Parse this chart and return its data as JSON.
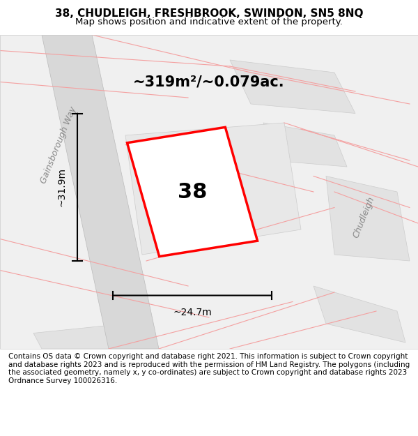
{
  "title": "38, CHUDLEIGH, FRESHBROOK, SWINDON, SN5 8NQ",
  "subtitle": "Map shows position and indicative extent of the property.",
  "area_label": "~319m²/~0.079ac.",
  "house_number": "38",
  "dim_width": "~24.7m",
  "dim_height": "~31.9m",
  "street_label_gainsborough": "Gainsborough Way",
  "street_label_chudleigh": "Chudleigh",
  "copyright_text": "Contains OS data © Crown copyright and database right 2021. This information is subject to Crown copyright and database rights 2023 and is reproduced with the permission of HM Land Registry. The polygons (including the associated geometry, namely x, y co-ordinates) are subject to Crown copyright and database rights 2023 Ordnance Survey 100026316.",
  "bg_color": "#f7f7f7",
  "map_bg": "#f0f0f0",
  "road_fill": "#e8e8e8",
  "block_fill": "#e0e0e0",
  "red_color": "#ff0000",
  "pink_color": "#f4a0a0",
  "dark_line": "#333333",
  "title_fontsize": 11,
  "subtitle_fontsize": 9.5,
  "area_fontsize": 15,
  "number_fontsize": 22,
  "dim_fontsize": 10,
  "street_fontsize": 9,
  "copyright_fontsize": 7.5
}
